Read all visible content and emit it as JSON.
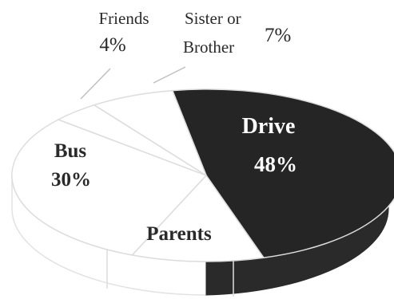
{
  "chart_data": {
    "type": "pie",
    "style": "3d",
    "slices": [
      {
        "key": "drive",
        "label": "Drive",
        "label_line2": "",
        "value_text": "48%",
        "value": 48,
        "color": "#252525",
        "text_color": "#ffffff"
      },
      {
        "key": "parents",
        "label": "Parents",
        "label_line2": "",
        "value_text": "",
        "value": 11,
        "color": "#ffffff",
        "text_color": "#2a2a2a"
      },
      {
        "key": "bus",
        "label": "Bus",
        "label_line2": "",
        "value_text": "30%",
        "value": 30,
        "color": "#ffffff",
        "text_color": "#2a2a2a"
      },
      {
        "key": "friends",
        "label": "Friends",
        "label_line2": "",
        "value_text": "4%",
        "value": 4,
        "color": "#ffffff",
        "text_color": "#2a2a2a"
      },
      {
        "key": "sibling",
        "label": "Sister or",
        "label_line2": "Brother",
        "value_text": "7%",
        "value": 7,
        "color": "#ffffff",
        "text_color": "#2a2a2a"
      }
    ],
    "edge_color": "#dcdcdc",
    "dark_side_color": "#2a2a2a",
    "legend": "none"
  }
}
